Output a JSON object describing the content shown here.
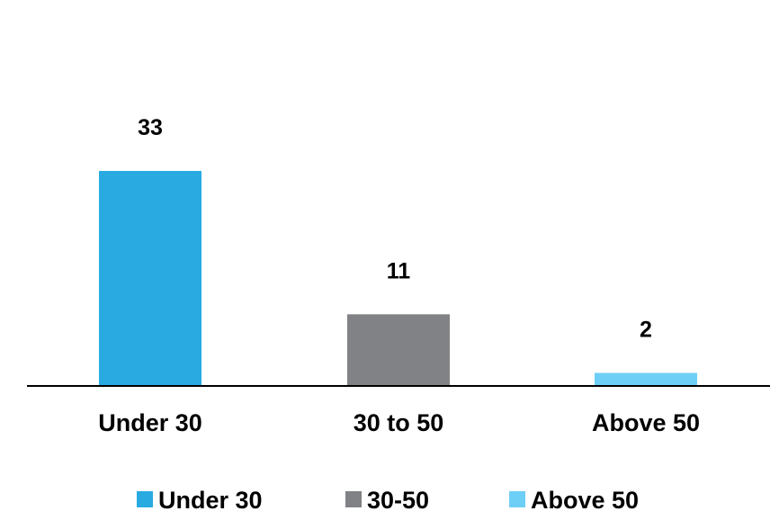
{
  "chart_data": {
    "type": "bar",
    "categories": [
      "Under 30",
      "30 to 50",
      "Above 50"
    ],
    "values": [
      33,
      11,
      2
    ],
    "data_labels": [
      "33",
      "11",
      "2"
    ],
    "colors": [
      "#29abe2",
      "#808285",
      "#6dcff6"
    ],
    "ylim": [
      0,
      33
    ],
    "grid": false,
    "legend": {
      "placement": "bottom",
      "entries": [
        {
          "label": "Under 30",
          "color": "#29abe2"
        },
        {
          "label": "30-50",
          "color": "#808285"
        },
        {
          "label": "Above 50",
          "color": "#6dcff6"
        }
      ]
    }
  }
}
